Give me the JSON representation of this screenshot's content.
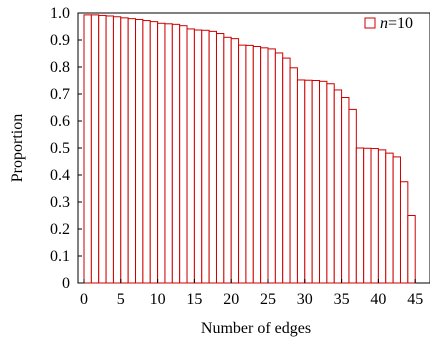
{
  "chart_data": {
    "type": "bar",
    "xlabel": "Number of edges",
    "ylabel": "Proportion",
    "xlim": [
      0,
      45
    ],
    "ylim": [
      0,
      1.0
    ],
    "x_ticks": [
      "0",
      "5",
      "10",
      "15",
      "20",
      "25",
      "30",
      "35",
      "40",
      "45"
    ],
    "y_ticks": [
      "0",
      "0.1",
      "0.2",
      "0.3",
      "0.4",
      "0.5",
      "0.6",
      "0.7",
      "0.8",
      "0.9",
      "1.0"
    ],
    "bar_color": "#cc0000",
    "legend": {
      "prefix": "n",
      "suffix": "=10",
      "placement": "top-right"
    },
    "grid": false,
    "series": [
      {
        "name": "n=10",
        "x": [
          1,
          2,
          3,
          4,
          5,
          6,
          7,
          8,
          9,
          10,
          11,
          12,
          13,
          14,
          15,
          16,
          17,
          18,
          19,
          20,
          21,
          22,
          23,
          24,
          25,
          26,
          27,
          28,
          29,
          30,
          31,
          32,
          33,
          34,
          35,
          36,
          37,
          38,
          39,
          40,
          41,
          42,
          43,
          44,
          45
        ],
        "values": [
          0.993,
          0.993,
          0.991,
          0.989,
          0.986,
          0.982,
          0.979,
          0.976,
          0.972,
          0.968,
          0.962,
          0.96,
          0.958,
          0.953,
          0.941,
          0.937,
          0.936,
          0.932,
          0.924,
          0.91,
          0.905,
          0.881,
          0.88,
          0.876,
          0.871,
          0.867,
          0.852,
          0.833,
          0.797,
          0.752,
          0.751,
          0.75,
          0.747,
          0.738,
          0.715,
          0.687,
          0.643,
          0.5,
          0.499,
          0.498,
          0.493,
          0.481,
          0.467,
          0.375,
          0.25
        ]
      }
    ]
  }
}
